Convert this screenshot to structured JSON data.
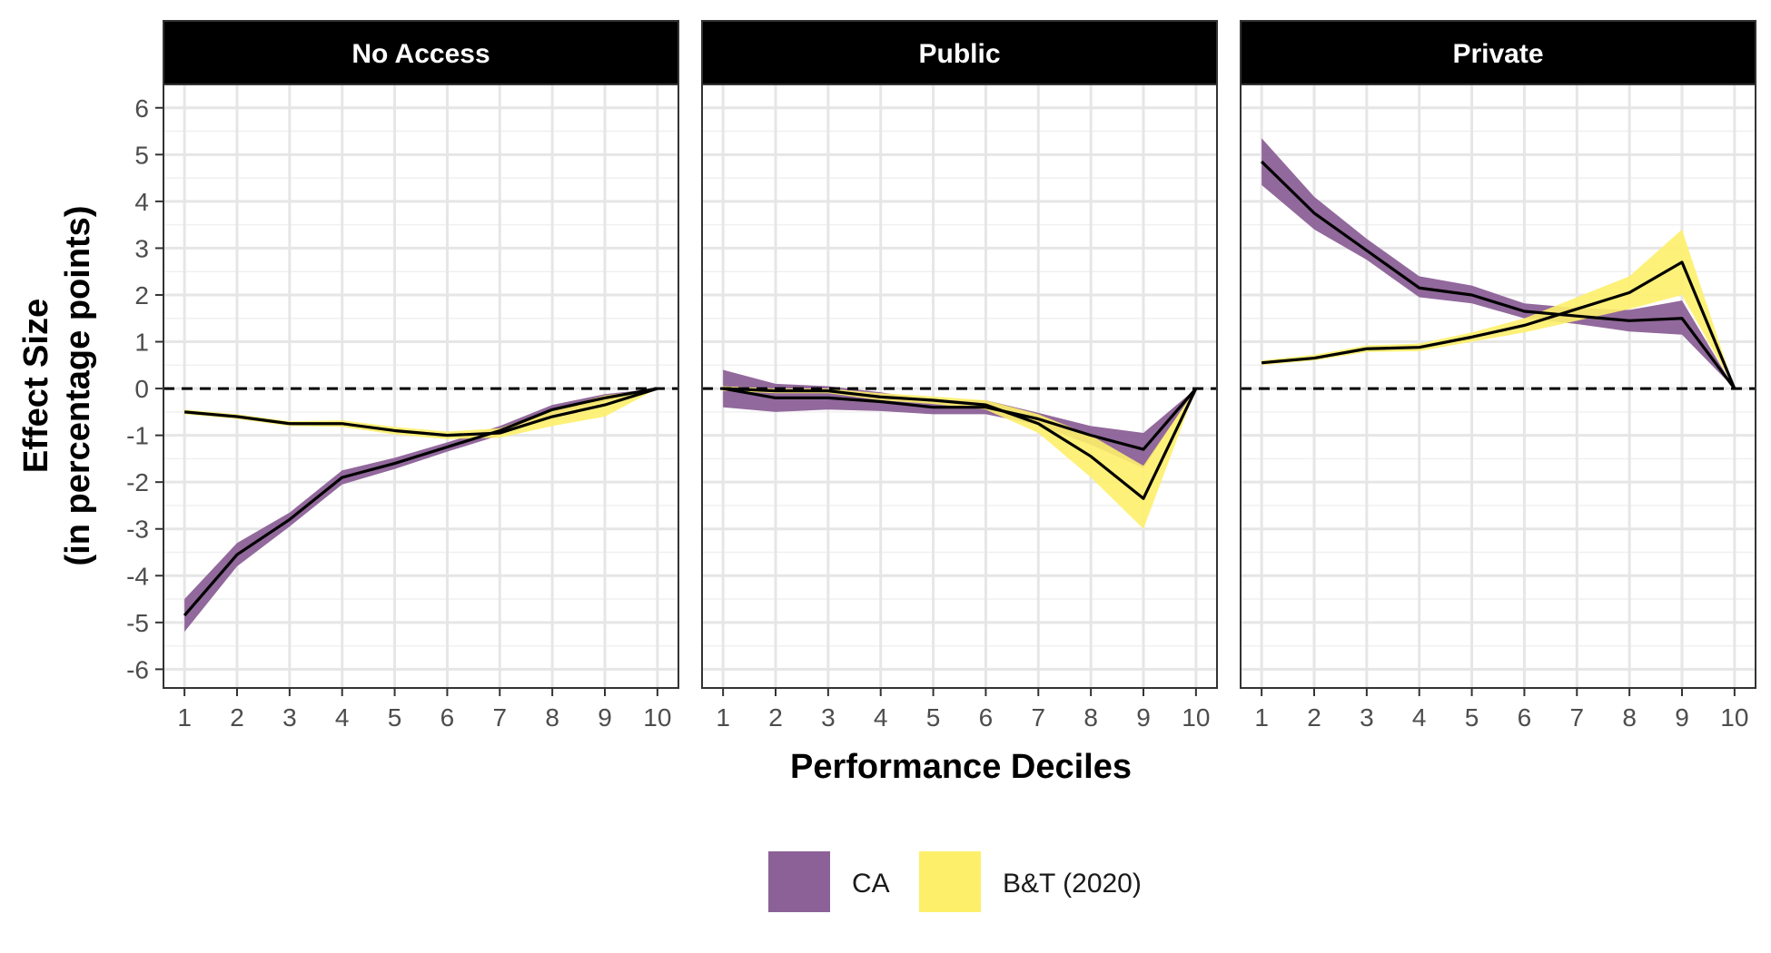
{
  "chart_data": {
    "type": "line",
    "facets": [
      "No Access",
      "Public",
      "Private"
    ],
    "xlabel": "Performance Deciles",
    "ylabel_lines": [
      "Effect Size",
      "(in percentage points)"
    ],
    "x": [
      1,
      2,
      3,
      4,
      5,
      6,
      7,
      8,
      9,
      10
    ],
    "x_tick_labels": [
      "1",
      "2",
      "3",
      "4",
      "5",
      "6",
      "7",
      "8",
      "9",
      "10"
    ],
    "y_ticks": [
      -6,
      -5,
      -4,
      -3,
      -2,
      -1,
      0,
      1,
      2,
      3,
      4,
      5,
      6
    ],
    "y_tick_labels": [
      "-6",
      "-5",
      "-4",
      "-3",
      "-2",
      "-1",
      "0",
      "1",
      "2",
      "3",
      "4",
      "5",
      "6"
    ],
    "xlim": [
      0.6,
      10.4
    ],
    "ylim": [
      -6.4,
      6.5
    ],
    "reference_line": 0,
    "grid": true,
    "legend_position": "bottom",
    "legend": [
      {
        "label": "CA",
        "color": "#8c6197"
      },
      {
        "label": "B&T (2020)",
        "color": "#fdef6a"
      }
    ],
    "panels": [
      {
        "facet": "No Access",
        "series": [
          {
            "name": "CA",
            "color": "#8c6197",
            "values": [
              -4.85,
              -3.55,
              -2.8,
              -1.9,
              -1.6,
              -1.25,
              -0.9,
              -0.45,
              -0.2,
              0.0
            ],
            "lower": [
              -5.2,
              -3.8,
              -2.95,
              -2.05,
              -1.72,
              -1.35,
              -1.0,
              -0.55,
              -0.28,
              0.0
            ],
            "upper": [
              -4.5,
              -3.3,
              -2.65,
              -1.75,
              -1.48,
              -1.15,
              -0.8,
              -0.35,
              -0.12,
              0.0
            ]
          },
          {
            "name": "B&T (2020)",
            "color": "#fdef6a",
            "values": [
              -0.5,
              -0.6,
              -0.75,
              -0.75,
              -0.9,
              -1.0,
              -0.95,
              -0.6,
              -0.35,
              0.0
            ],
            "lower": [
              -0.55,
              -0.65,
              -0.8,
              -0.82,
              -0.98,
              -1.08,
              -1.05,
              -0.8,
              -0.6,
              0.0
            ],
            "upper": [
              -0.45,
              -0.55,
              -0.7,
              -0.68,
              -0.82,
              -0.92,
              -0.85,
              -0.45,
              -0.15,
              0.0
            ]
          }
        ]
      },
      {
        "facet": "Public",
        "series": [
          {
            "name": "CA",
            "color": "#8c6197",
            "values": [
              0.0,
              -0.2,
              -0.2,
              -0.28,
              -0.4,
              -0.4,
              -0.65,
              -1.0,
              -1.3,
              0.0
            ],
            "lower": [
              -0.4,
              -0.5,
              -0.45,
              -0.48,
              -0.55,
              -0.55,
              -0.78,
              -1.2,
              -1.7,
              0.0
            ],
            "upper": [
              0.4,
              0.1,
              0.05,
              -0.08,
              -0.25,
              -0.25,
              -0.52,
              -0.8,
              -0.95,
              0.0
            ]
          },
          {
            "name": "B&T (2020)",
            "color": "#fdef6a",
            "values": [
              0.0,
              -0.05,
              -0.05,
              -0.18,
              -0.25,
              -0.35,
              -0.75,
              -1.45,
              -2.35,
              0.0
            ],
            "lower": [
              -0.05,
              -0.1,
              -0.1,
              -0.25,
              -0.33,
              -0.45,
              -0.95,
              -1.9,
              -3.0,
              0.0
            ],
            "upper": [
              0.05,
              0.0,
              0.0,
              -0.1,
              -0.17,
              -0.25,
              -0.55,
              -1.0,
              -1.65,
              0.0
            ]
          }
        ]
      },
      {
        "facet": "Private",
        "series": [
          {
            "name": "CA",
            "color": "#8c6197",
            "values": [
              4.85,
              3.75,
              2.95,
              2.15,
              2.0,
              1.65,
              1.55,
              1.45,
              1.5,
              0.0
            ],
            "lower": [
              4.35,
              3.4,
              2.75,
              1.95,
              1.82,
              1.5,
              1.38,
              1.22,
              1.15,
              0.0
            ],
            "upper": [
              5.35,
              4.1,
              3.2,
              2.4,
              2.2,
              1.82,
              1.72,
              1.68,
              1.88,
              0.0
            ]
          },
          {
            "name": "B&T (2020)",
            "color": "#fdef6a",
            "values": [
              0.55,
              0.65,
              0.85,
              0.88,
              1.1,
              1.35,
              1.7,
              2.05,
              2.7,
              0.0
            ],
            "lower": [
              0.5,
              0.6,
              0.78,
              0.8,
              1.0,
              1.2,
              1.45,
              1.7,
              2.0,
              0.0
            ],
            "upper": [
              0.6,
              0.72,
              0.92,
              0.96,
              1.2,
              1.5,
              1.95,
              2.4,
              3.4,
              0.0
            ]
          }
        ]
      }
    ]
  }
}
